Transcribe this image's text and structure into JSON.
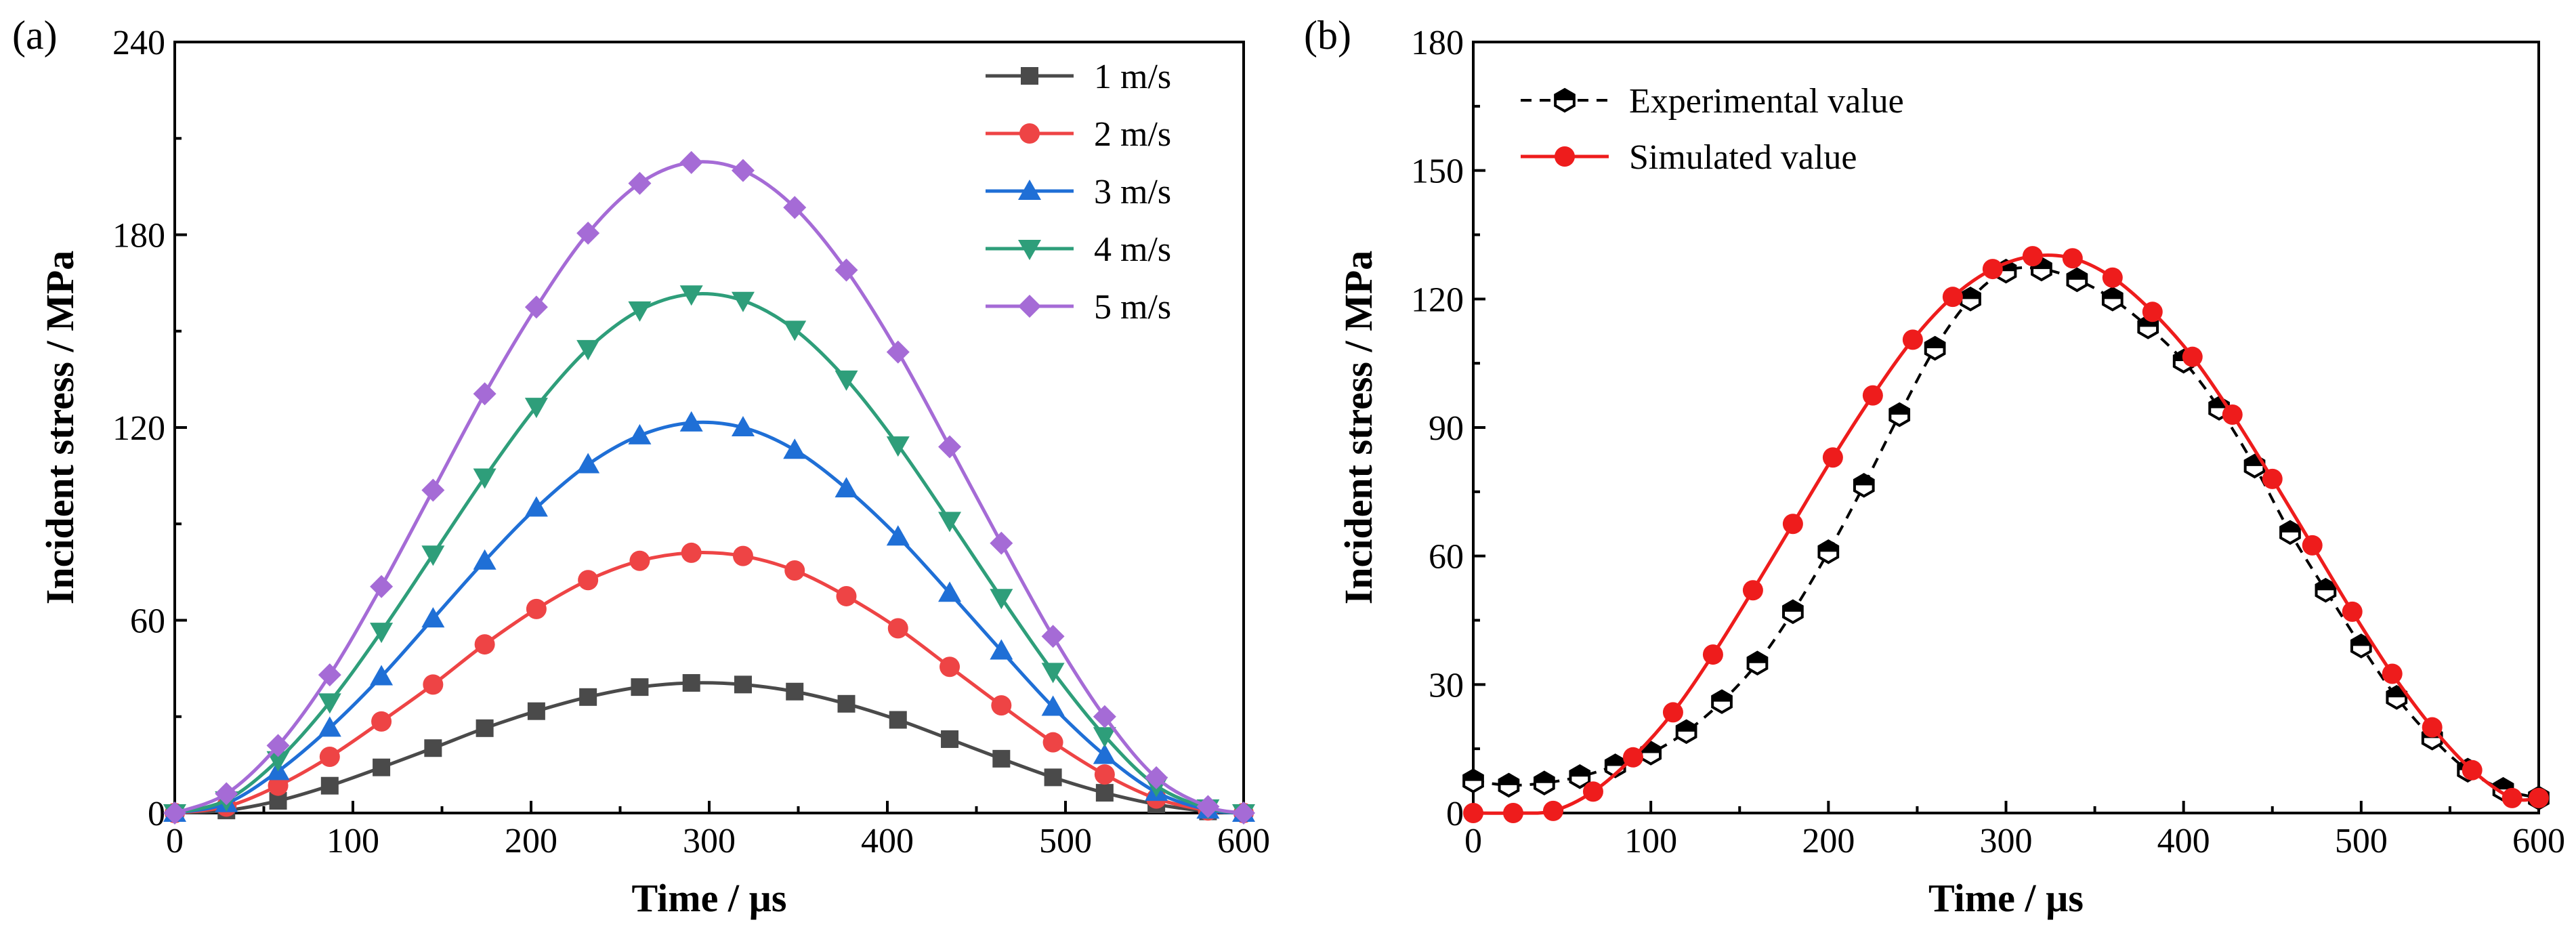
{
  "chart_data": [
    {
      "panel_label": "(a)",
      "type": "line",
      "xlabel": "Time / µs",
      "ylabel": "Incident stress / MPa",
      "xlim": [
        0,
        600
      ],
      "ylim": [
        0,
        240
      ],
      "xticks": [
        0,
        100,
        200,
        300,
        400,
        500,
        600
      ],
      "yticks": [
        0,
        60,
        120,
        180,
        240
      ],
      "legend_position": "top-right",
      "series": [
        {
          "name": "1 m/s",
          "color": "#4a4a4a",
          "marker": "square",
          "x": [
            0,
            29,
            58,
            87,
            116,
            145,
            174,
            203,
            232,
            261,
            290,
            319,
            348,
            377,
            406,
            435,
            464,
            493,
            522,
            551,
            580,
            600
          ],
          "y": [
            0,
            0.8,
            3.8,
            8.5,
            14.2,
            20.2,
            26.4,
            31.7,
            36.1,
            39.2,
            40.5,
            40.0,
            37.8,
            34.0,
            29.0,
            23.0,
            16.9,
            11.1,
            6.3,
            2.7,
            0.5,
            0
          ]
        },
        {
          "name": "2 m/s",
          "color": "#ee4445",
          "marker": "circle",
          "x": [
            0,
            29,
            58,
            87,
            116,
            145,
            174,
            203,
            232,
            261,
            290,
            319,
            348,
            377,
            406,
            435,
            464,
            493,
            522,
            551,
            580,
            600
          ],
          "y": [
            0,
            2.0,
            8.5,
            17.5,
            28.5,
            40.0,
            52.5,
            63.5,
            72.5,
            78.5,
            81.0,
            80.0,
            75.5,
            67.5,
            57.5,
            45.5,
            33.5,
            22.0,
            12.0,
            4.5,
            0.8,
            0
          ]
        },
        {
          "name": "3 m/s",
          "color": "#1f6fd6",
          "marker": "triangle-up",
          "x": [
            0,
            29,
            58,
            87,
            116,
            145,
            174,
            203,
            232,
            261,
            290,
            319,
            348,
            377,
            406,
            435,
            464,
            493,
            522,
            551,
            580,
            600
          ],
          "y": [
            0,
            3.0,
            13.0,
            26.5,
            42.5,
            60.5,
            78.5,
            95.0,
            108.5,
            117.5,
            121.5,
            120.0,
            113.0,
            101.0,
            86.0,
            68.5,
            50.5,
            33.0,
            18.0,
            6.5,
            1.0,
            0
          ]
        },
        {
          "name": "4 m/s",
          "color": "#2e9e7a",
          "marker": "triangle-down",
          "x": [
            0,
            29,
            58,
            87,
            116,
            145,
            174,
            203,
            232,
            261,
            290,
            319,
            348,
            377,
            406,
            435,
            464,
            493,
            522,
            551,
            580,
            600
          ],
          "y": [
            0,
            4.0,
            16.5,
            34.5,
            56.5,
            80.5,
            104.5,
            126.5,
            144.5,
            156.5,
            161.5,
            159.5,
            150.5,
            135.0,
            114.5,
            91.0,
            67.0,
            44.0,
            24.0,
            8.5,
            1.5,
            0
          ]
        },
        {
          "name": "5 m/s",
          "color": "#a56bd6",
          "marker": "diamond",
          "x": [
            0,
            29,
            58,
            87,
            116,
            145,
            174,
            203,
            232,
            261,
            290,
            319,
            348,
            377,
            406,
            435,
            464,
            493,
            522,
            551,
            580,
            600
          ],
          "y": [
            0,
            6.0,
            21.0,
            43.0,
            70.5,
            100.5,
            130.5,
            157.5,
            180.5,
            196.0,
            202.5,
            200.0,
            188.5,
            169.0,
            143.5,
            114.0,
            84.0,
            55.0,
            30.0,
            11.0,
            2.0,
            0
          ]
        }
      ]
    },
    {
      "panel_label": "(b)",
      "type": "line",
      "xlabel": "Time / µs",
      "ylabel": "Incident stress / MPa",
      "xlim": [
        0,
        600
      ],
      "ylim": [
        0,
        180
      ],
      "xticks": [
        0,
        100,
        200,
        300,
        400,
        500,
        600
      ],
      "yticks": [
        0,
        30,
        60,
        90,
        120,
        150,
        180
      ],
      "legend_position": "top-left",
      "series": [
        {
          "name": "Experimental value",
          "color": "#000000",
          "marker": "hexagon-half",
          "line_style": "dashed",
          "x": [
            0,
            20,
            40,
            60,
            80,
            100,
            120,
            140,
            160,
            180,
            200,
            220,
            240,
            260,
            280,
            300,
            320,
            340,
            360,
            380,
            400,
            420,
            440,
            460,
            480,
            500,
            520,
            540,
            560,
            580,
            600
          ],
          "y": [
            7.5,
            6.5,
            7.0,
            8.5,
            11.0,
            14.0,
            19.0,
            26.0,
            35.0,
            47.0,
            61.0,
            76.5,
            93.0,
            108.5,
            120.0,
            126.5,
            127.0,
            124.5,
            120.0,
            113.5,
            105.5,
            94.5,
            81.0,
            65.5,
            52.0,
            39.0,
            27.0,
            17.5,
            10.0,
            5.5,
            3.5
          ]
        },
        {
          "name": "Simulated value",
          "color": "#ee1c1c",
          "marker": "circle",
          "line_style": "solid",
          "x": [
            0,
            22.5,
            45,
            67.5,
            90,
            112.5,
            135,
            157.5,
            180,
            202.5,
            225,
            247.5,
            270,
            292.5,
            315,
            337.5,
            360,
            382.5,
            405,
            427.5,
            450,
            472.5,
            495,
            517.5,
            540,
            562.5,
            585,
            600
          ],
          "y": [
            0,
            0,
            0.5,
            5.0,
            13.0,
            23.5,
            37.0,
            52.0,
            67.5,
            83.0,
            97.5,
            110.5,
            120.5,
            127.0,
            130.0,
            129.5,
            125.0,
            117.0,
            106.5,
            93.0,
            78.0,
            62.5,
            47.0,
            32.5,
            20.0,
            10.0,
            3.5,
            3.5
          ]
        }
      ]
    }
  ]
}
